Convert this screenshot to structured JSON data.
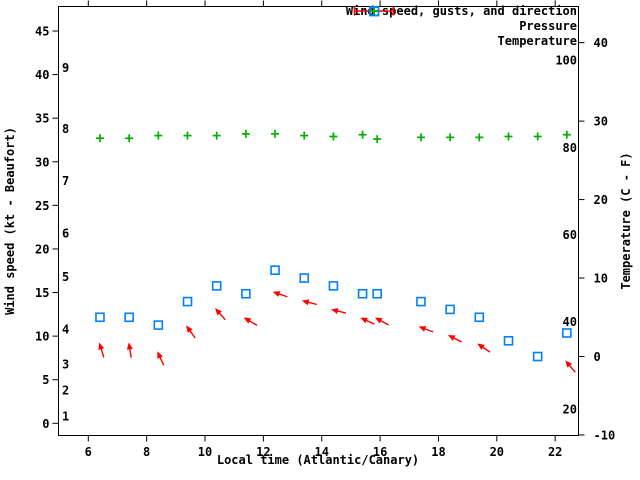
{
  "colors": {
    "wind": "#ff0000",
    "pressure": "#00b000",
    "temperature": "#0080ff",
    "axis": "#000000",
    "background": "#ffffff"
  },
  "chart_data": {
    "type": "scatter",
    "title": "",
    "grid": false,
    "legend_position": "top-right-inside",
    "x_hours": [
      6.4,
      7.4,
      8.4,
      9.4,
      10.4,
      11.4,
      12.4,
      13.4,
      14.4,
      15.4,
      15.9,
      17.4,
      18.4,
      19.4,
      20.4,
      21.4,
      22.4
    ],
    "series": [
      {
        "name": "Wind speed, gusts, and direction",
        "marker": "red-arrow-errorbar",
        "unit": "kt",
        "values": [
          9,
          9,
          8,
          11,
          13,
          12,
          15,
          14,
          13,
          12,
          12,
          11,
          10,
          9,
          null,
          null,
          7
        ],
        "arrow_dir_screen_deg": [
          107,
          99,
          115,
          126,
          131,
          149,
          161,
          166,
          166,
          155,
          151,
          160,
          153,
          146,
          null,
          null,
          130
        ]
      },
      {
        "name": "Pressure",
        "marker": "green-plus",
        "unit": "",
        "scale": "unlabeled",
        "y_on_left_axis_kt": [
          32.7,
          32.7,
          33.0,
          33.0,
          33.0,
          33.2,
          33.2,
          33.0,
          32.9,
          33.1,
          32.6,
          32.8,
          32.8,
          32.8,
          32.9,
          32.9,
          33.1
        ]
      },
      {
        "name": "Temperature",
        "marker": "blue-open-square",
        "unit": "C",
        "values": [
          5,
          5,
          4,
          7,
          9,
          8,
          11,
          10,
          9,
          8,
          8,
          7,
          6,
          5,
          2,
          0,
          3
        ]
      }
    ],
    "axes": {
      "x": {
        "label": "Local time (Atlantic/Canary)",
        "ticks": [
          6,
          8,
          10,
          12,
          14,
          16,
          18,
          20,
          22
        ],
        "range_hint": [
          5.0,
          22.8
        ]
      },
      "left": {
        "label": "Wind speed (kt - Beaufort)",
        "kt_ticks": [
          0,
          5,
          10,
          15,
          20,
          25,
          30,
          35,
          40,
          45
        ],
        "beaufort_labels": [
          {
            "bft": "1",
            "kt": 1
          },
          {
            "bft": "2",
            "kt": 4
          },
          {
            "bft": "3",
            "kt": 7
          },
          {
            "bft": "4",
            "kt": 11
          },
          {
            "bft": "5",
            "kt": 17
          },
          {
            "bft": "6",
            "kt": 22
          },
          {
            "bft": "7",
            "kt": 28
          },
          {
            "bft": "8",
            "kt": 34
          },
          {
            "bft": "9",
            "kt": 41
          }
        ]
      },
      "right": {
        "label": "Temperature (C - F)",
        "c_ticks": [
          -10,
          0,
          10,
          20,
          30,
          40
        ],
        "f_labels": [
          20,
          40,
          60,
          80,
          100
        ]
      }
    }
  }
}
